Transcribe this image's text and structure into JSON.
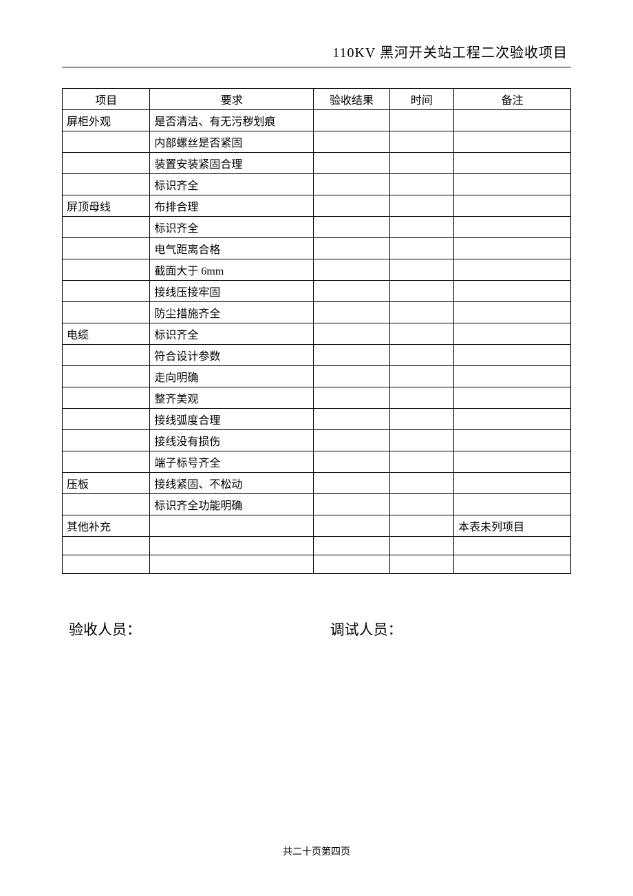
{
  "header": {
    "title": "110KV 黑河开关站工程二次验收项目"
  },
  "table": {
    "columns": [
      "项目",
      "要求",
      "验收结果",
      "时间",
      "备注"
    ],
    "rows": [
      [
        "屏柜外观",
        "是否清洁、有无污秽划痕",
        "",
        "",
        ""
      ],
      [
        "",
        "内部螺丝是否紧固",
        "",
        "",
        ""
      ],
      [
        "",
        "装置安装紧固合理",
        "",
        "",
        ""
      ],
      [
        "",
        "标识齐全",
        "",
        "",
        ""
      ],
      [
        "屏顶母线",
        "布排合理",
        "",
        "",
        ""
      ],
      [
        "",
        "标识齐全",
        "",
        "",
        ""
      ],
      [
        "",
        "电气距离合格",
        "",
        "",
        ""
      ],
      [
        "",
        "截面大于 6mm",
        "",
        "",
        ""
      ],
      [
        "",
        "接线压接牢固",
        "",
        "",
        ""
      ],
      [
        "",
        "防尘措施齐全",
        "",
        "",
        ""
      ],
      [
        "电缆",
        "标识齐全",
        "",
        "",
        ""
      ],
      [
        "",
        "符合设计参数",
        "",
        "",
        ""
      ],
      [
        "",
        "走向明确",
        "",
        "",
        ""
      ],
      [
        "",
        "整齐美观",
        "",
        "",
        ""
      ],
      [
        "",
        "接线弧度合理",
        "",
        "",
        ""
      ],
      [
        "",
        "接线没有损伤",
        "",
        "",
        ""
      ],
      [
        "",
        "端子标号齐全",
        "",
        "",
        ""
      ],
      [
        "压板",
        "接线紧固、不松动",
        "",
        "",
        ""
      ],
      [
        "",
        "标识齐全功能明确",
        "",
        "",
        ""
      ],
      [
        "其他补充",
        "",
        "",
        "",
        "本表未列项目"
      ],
      [
        "",
        "",
        "",
        "",
        ""
      ],
      [
        "",
        "",
        "",
        "",
        ""
      ]
    ]
  },
  "signatures": {
    "left": "验收人员：",
    "right": "调试人员："
  },
  "footer": {
    "text": "共二十页第四页"
  }
}
